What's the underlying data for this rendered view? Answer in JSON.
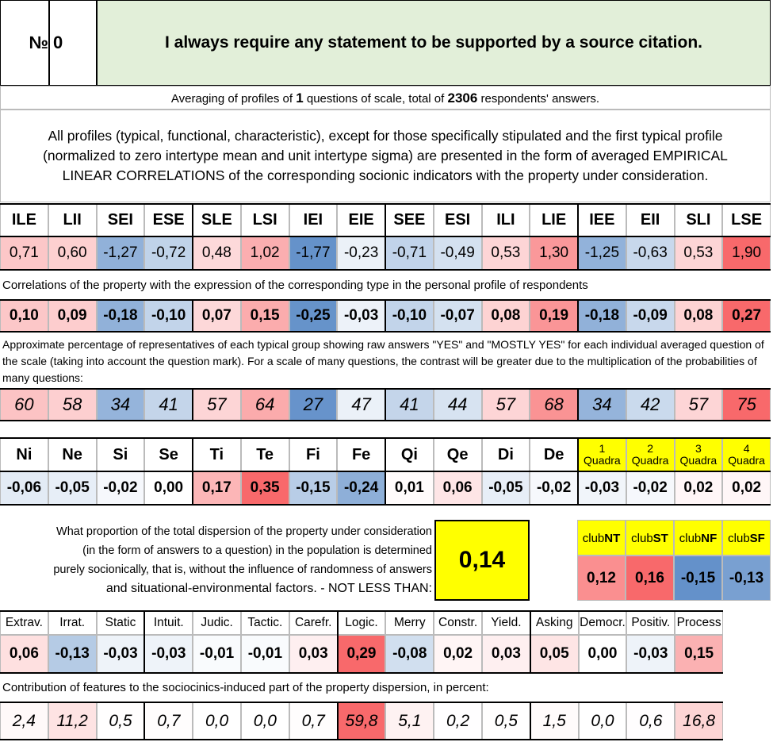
{
  "header": {
    "no_sign": "№",
    "no": "0",
    "title": "I always require any statement to be supported by a source citation."
  },
  "summary": [
    "Averaging of profiles of ",
    "1",
    " questions of scale, total of ",
    "2306",
    " respondents' answers."
  ],
  "note": "All profiles (typical, functional, characteristic), except for those specifically stipulated and the first typical profile (normalized to zero intertype mean and unit intertype sigma) are presented in the form of averaged EMPIRICAL LINEAR CORRELATIONS of the corresponding socionic indicators with the property under consideration.",
  "types": {
    "names": [
      "ILE",
      "LII",
      "SEI",
      "ESE",
      "SLE",
      "LSI",
      "IEI",
      "EIE",
      "SEE",
      "ESI",
      "ILI",
      "LIE",
      "IEE",
      "EII",
      "SLI",
      "LSE"
    ],
    "profile": [
      "0,71",
      "0,60",
      "-1,27",
      "-0,72",
      "0,48",
      "1,02",
      "-1,77",
      "-0,23",
      "-0,71",
      "-0,49",
      "0,53",
      "1,30",
      "-1,25",
      "-0,63",
      "0,53",
      "1,90"
    ],
    "correlations_caption": "Correlations of the property with the expression of the corresponding type in the personal profile of respondents",
    "correlations": [
      "0,10",
      "0,09",
      "-0,18",
      "-0,10",
      "0,07",
      "0,15",
      "-0,25",
      "-0,03",
      "-0,10",
      "-0,07",
      "0,08",
      "0,19",
      "-0,18",
      "-0,09",
      "0,08",
      "0,27"
    ],
    "percent_caption": "Approximate percentage of representatives of each typical group showing raw answers \"YES\" and \"MOSTLY YES\" for each individual averaged question of the scale (taking into account the question mark). For a scale of many questions, the contrast will be greater due to the multiplication of the probabilities of many questions:",
    "percent": [
      "60",
      "58",
      "34",
      "41",
      "57",
      "64",
      "27",
      "47",
      "41",
      "44",
      "57",
      "68",
      "34",
      "42",
      "57",
      "75"
    ]
  },
  "functions": {
    "names": [
      "Ni",
      "Ne",
      "Si",
      "Se",
      "Ti",
      "Te",
      "Fi",
      "Fe",
      "Qi",
      "Qe",
      "Di",
      "De"
    ],
    "quadras": [
      {
        "num": "1",
        "label": "Quadra"
      },
      {
        "num": "2",
        "label": "Quadra"
      },
      {
        "num": "3",
        "label": "Quadra"
      },
      {
        "num": "4",
        "label": "Quadra"
      }
    ],
    "values": [
      "-0,06",
      "-0,05",
      "-0,02",
      "0,00",
      "0,17",
      "0,35",
      "-0,15",
      "-0,24",
      "0,01",
      "0,06",
      "-0,05",
      "-0,02",
      "-0,03",
      "-0,02",
      "0,02",
      "0,02"
    ]
  },
  "dispersion": {
    "lines": [
      "What proportion of the total dispersion of the property under consideration",
      "(in the form of answers to a question) in the population is determined",
      "purely socionically, that is, without the influence of randomness of answers",
      "and situational-environmental factors. - NOT LESS THAN:"
    ],
    "value": "0,14"
  },
  "clubs": {
    "names": [
      {
        "prefix": "club",
        "suffix": "NT"
      },
      {
        "prefix": "club",
        "suffix": "ST"
      },
      {
        "prefix": "club",
        "suffix": "NF"
      },
      {
        "prefix": "club",
        "suffix": "SF"
      }
    ],
    "values": [
      "0,12",
      "0,16",
      "-0,15",
      "-0,13"
    ]
  },
  "traits": {
    "names": [
      "Extrav.",
      "Irrat.",
      "Static",
      "Intuit.",
      "Judic.",
      "Tactic.",
      "Carefr.",
      "Logic.",
      "Merry",
      "Constr.",
      "Yield.",
      "Asking",
      "Democr.",
      "Positiv.",
      "Process"
    ],
    "values": [
      "0,06",
      "-0,13",
      "-0,03",
      "-0,03",
      "-0,01",
      "-0,01",
      "0,03",
      "0,29",
      "-0,08",
      "0,02",
      "0,03",
      "0,05",
      "0,00",
      "-0,03",
      "0,15"
    ],
    "contribution_caption": "Contribution of features to the sociocinics-induced part of the property dispersion, in percent:",
    "contributions": [
      "2,4",
      "11,2",
      "0,5",
      "0,7",
      "0,0",
      "0,0",
      "0,7",
      "59,8",
      "5,1",
      "0,2",
      "0,5",
      "1,5",
      "0,0",
      "0,6",
      "16,8"
    ]
  }
}
